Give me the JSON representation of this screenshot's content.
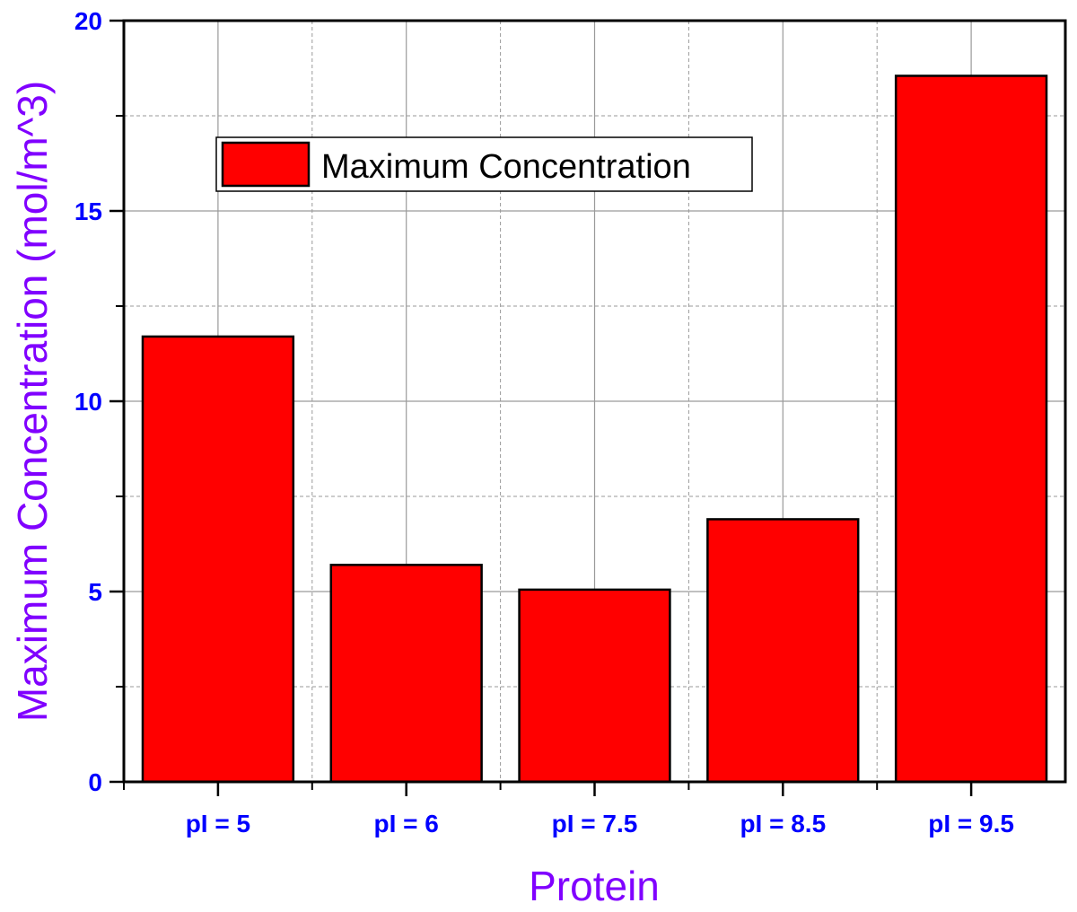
{
  "colors": {
    "bar_fill": "#ff0000",
    "bar_stroke": "#000000",
    "axis_title": "#8000ff",
    "tick_label": "#0000ff",
    "grid": "#9a9a9a",
    "frame": "#000000"
  },
  "chart_data": {
    "type": "bar",
    "categories": [
      "pI = 5",
      "pI = 6",
      "pI = 7.5",
      "pI = 8.5",
      "pI = 9.5"
    ],
    "series": [
      {
        "name": "Maximum Concentration",
        "values": [
          11.7,
          5.7,
          5.05,
          6.9,
          18.55
        ]
      }
    ],
    "title": "",
    "xlabel": "Protein",
    "ylabel": "Maximum Concentration (mol/m^3)",
    "ylim": [
      0,
      20
    ],
    "yticks": [
      "0",
      "5",
      "10",
      "15",
      "20"
    ],
    "ytick_values": [
      0,
      5,
      10,
      15,
      20
    ],
    "grid": true,
    "legend": {
      "position": "upper-center",
      "entries": [
        "Maximum Concentration"
      ]
    }
  }
}
